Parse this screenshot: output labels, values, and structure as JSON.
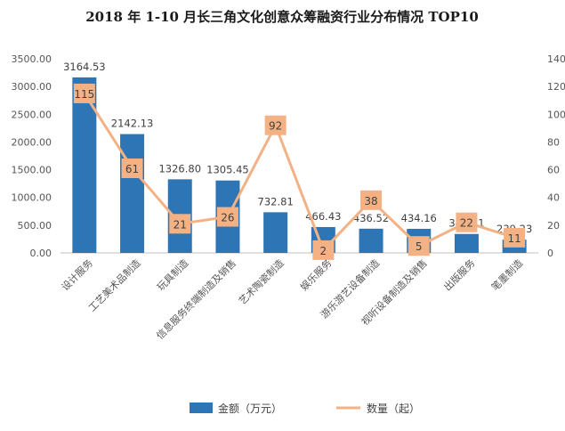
{
  "chart_data": {
    "type": "bar",
    "title": "2018 年 1-10 月长三角文化创意众筹融资行业分布情况 TOP10",
    "categories": [
      "设计服务",
      "工艺美术品制造",
      "玩具制造",
      "信息服务终端制造及销售",
      "艺术陶瓷制造",
      "娱乐服务",
      "游乐游艺设备制造",
      "视听设备制造及销售",
      "出版服务",
      "笔墨制造"
    ],
    "series": [
      {
        "name": "金额（万元）",
        "type": "bar",
        "axis": "left",
        "color": "#2e75b6",
        "values": [
          3164.53,
          2142.13,
          1326.8,
          1305.45,
          732.81,
          466.43,
          436.52,
          434.16,
          341.21,
          239.23
        ],
        "labels": [
          "3164.53",
          "2142.13",
          "1326.80",
          "1305.45",
          "732.81",
          "466.43",
          "436.52",
          "434.16",
          "341.21",
          "239.23"
        ]
      },
      {
        "name": "数量（起）",
        "type": "line",
        "axis": "right",
        "color": "#f4b183",
        "values": [
          115,
          61,
          21,
          26,
          92,
          2,
          38,
          5,
          22,
          11
        ]
      }
    ],
    "y_left": {
      "range": [
        0,
        3500
      ],
      "ticks": [
        0,
        500,
        1000,
        1500,
        2000,
        2500,
        3000,
        3500
      ],
      "tick_labels": [
        "0.00",
        "500.00",
        "1000.00",
        "1500.00",
        "2000.00",
        "2500.00",
        "3000.00",
        "3500.00"
      ]
    },
    "y_right": {
      "range": [
        0,
        140
      ],
      "ticks": [
        0,
        20,
        40,
        60,
        80,
        100,
        120,
        140
      ],
      "tick_labels": [
        "0",
        "20",
        "40",
        "60",
        "80",
        "100",
        "120",
        "140"
      ]
    },
    "grid": false,
    "legend": "bottom"
  }
}
